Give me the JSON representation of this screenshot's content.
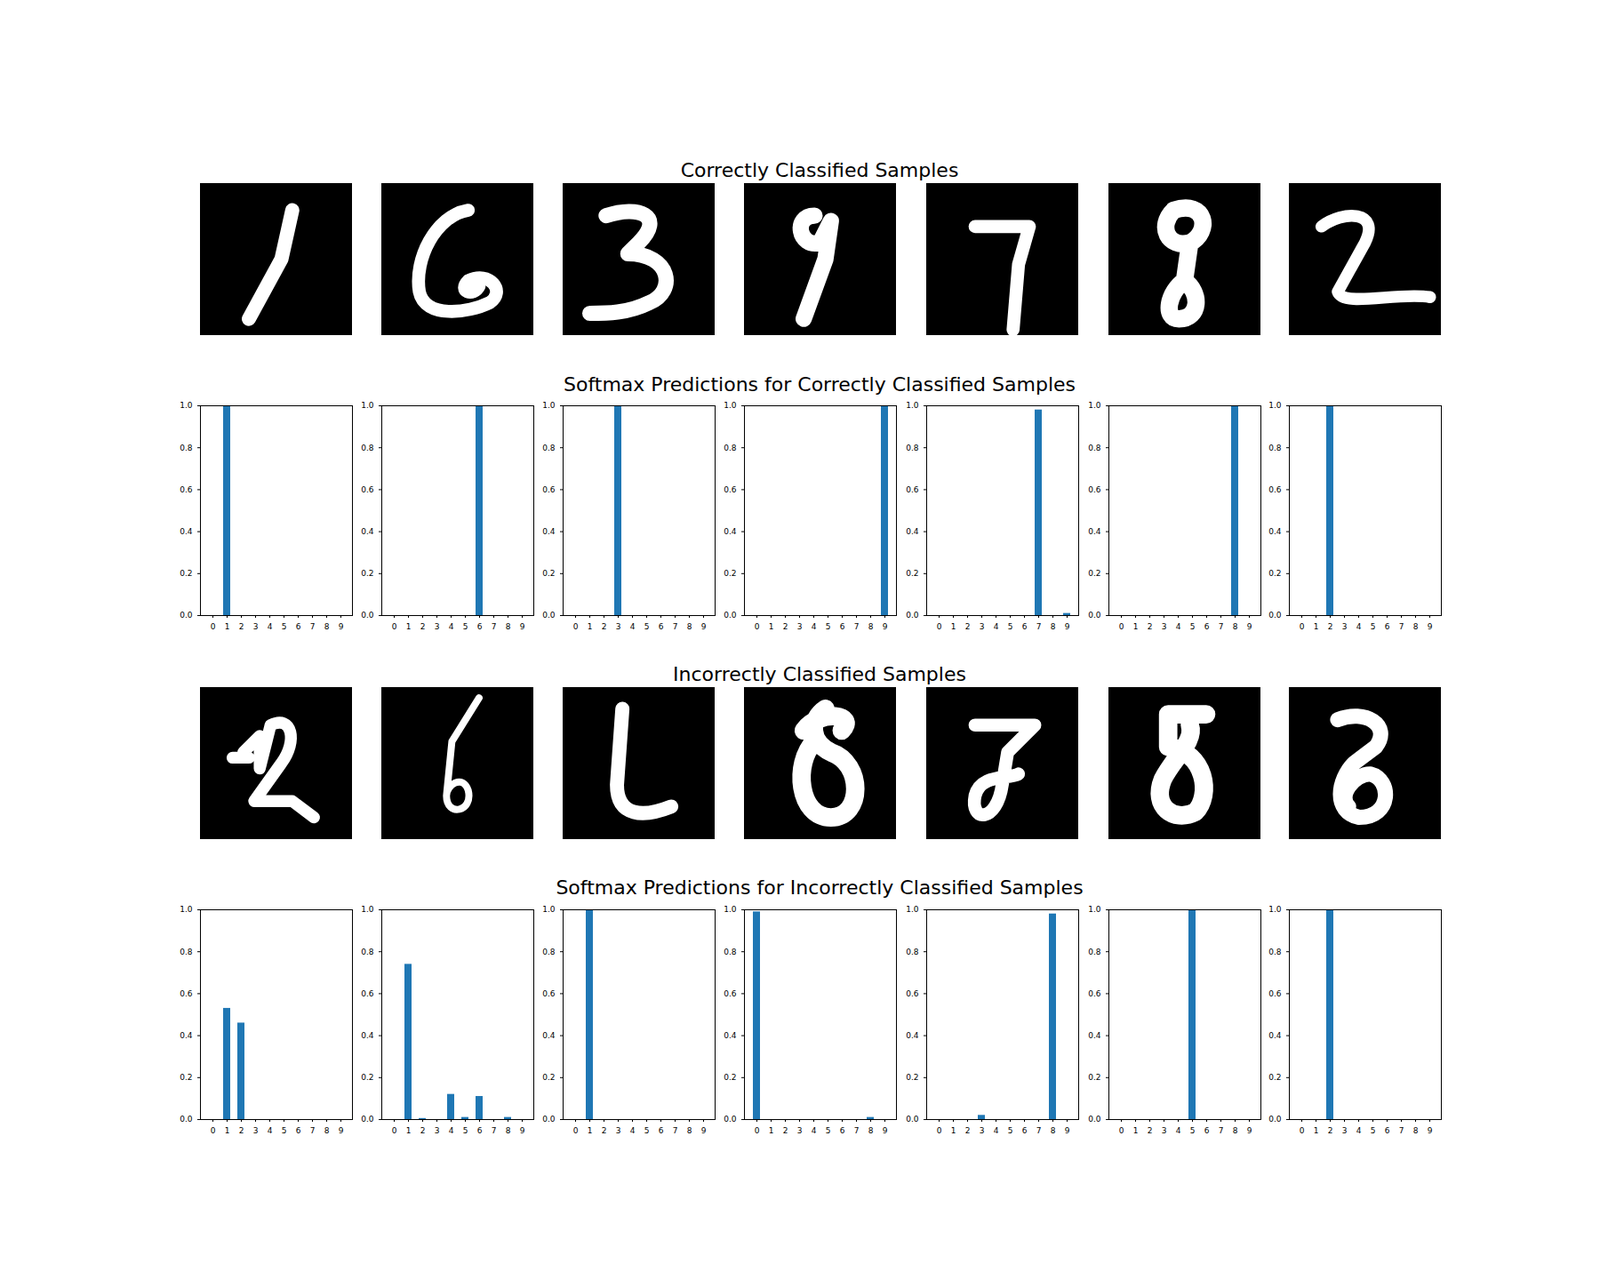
{
  "headings": {
    "correct_images": "Correctly Classified Samples",
    "correct_softmax": "Softmax Predictions for Correctly Classified Samples",
    "incorrect_images": "Incorrectly Classified Samples",
    "incorrect_softmax": "Softmax Predictions for Incorrectly Classified Samples"
  },
  "chart_data": [
    {
      "type": "bar",
      "categories": [
        "0",
        "1",
        "2",
        "3",
        "4",
        "5",
        "6",
        "7",
        "8",
        "9"
      ],
      "values": [
        0,
        1.0,
        0,
        0,
        0,
        0,
        0,
        0,
        0,
        0
      ],
      "color": "#1f77b4",
      "ylim": [
        0,
        1
      ],
      "yticks": [
        {
          "value": 0,
          "label": "0.0"
        },
        0.2,
        0.4,
        0.6,
        0.8,
        {
          "value": 1,
          "label": "1.0"
        }
      ]
    },
    {
      "type": "bar",
      "categories": [
        "0",
        "1",
        "2",
        "3",
        "4",
        "5",
        "6",
        "7",
        "8",
        "9"
      ],
      "values": [
        0,
        0,
        0,
        0,
        0,
        0,
        1.0,
        0,
        0,
        0
      ],
      "color": "#1f77b4",
      "ylim": [
        0,
        1
      ],
      "yticks": [
        {
          "value": 0,
          "label": "0.0"
        },
        0.2,
        0.4,
        0.6,
        0.8,
        {
          "value": 1,
          "label": "1.0"
        }
      ]
    },
    {
      "type": "bar",
      "categories": [
        "0",
        "1",
        "2",
        "3",
        "4",
        "5",
        "6",
        "7",
        "8",
        "9"
      ],
      "values": [
        0,
        0,
        0,
        1.0,
        0,
        0,
        0,
        0,
        0,
        0
      ],
      "color": "#1f77b4",
      "ylim": [
        0,
        1
      ],
      "yticks": [
        {
          "value": 0,
          "label": "0.0"
        },
        0.2,
        0.4,
        0.6,
        0.8,
        {
          "value": 1,
          "label": "1.0"
        }
      ]
    },
    {
      "type": "bar",
      "categories": [
        "0",
        "1",
        "2",
        "3",
        "4",
        "5",
        "6",
        "7",
        "8",
        "9"
      ],
      "values": [
        0,
        0,
        0,
        0,
        0,
        0,
        0,
        0,
        0,
        1.0
      ],
      "color": "#1f77b4",
      "ylim": [
        0,
        1
      ],
      "yticks": [
        {
          "value": 0,
          "label": "0.0"
        },
        0.2,
        0.4,
        0.6,
        0.8,
        {
          "value": 1,
          "label": "1.0"
        }
      ]
    },
    {
      "type": "bar",
      "categories": [
        "0",
        "1",
        "2",
        "3",
        "4",
        "5",
        "6",
        "7",
        "8",
        "9"
      ],
      "values": [
        0,
        0,
        0,
        0,
        0,
        0,
        0,
        0.98,
        0,
        0.01
      ],
      "color": "#1f77b4",
      "ylim": [
        0,
        1
      ],
      "yticks": [
        {
          "value": 0,
          "label": "0.0"
        },
        0.2,
        0.4,
        0.6,
        0.8,
        {
          "value": 1,
          "label": "1.0"
        }
      ]
    },
    {
      "type": "bar",
      "categories": [
        "0",
        "1",
        "2",
        "3",
        "4",
        "5",
        "6",
        "7",
        "8",
        "9"
      ],
      "values": [
        0,
        0,
        0,
        0,
        0,
        0,
        0,
        0,
        1.0,
        0
      ],
      "color": "#1f77b4",
      "ylim": [
        0,
        1
      ],
      "yticks": [
        {
          "value": 0,
          "label": "0.0"
        },
        0.2,
        0.4,
        0.6,
        0.8,
        {
          "value": 1,
          "label": "1.0"
        }
      ]
    },
    {
      "type": "bar",
      "categories": [
        "0",
        "1",
        "2",
        "3",
        "4",
        "5",
        "6",
        "7",
        "8",
        "9"
      ],
      "values": [
        0,
        0,
        1.0,
        0,
        0,
        0,
        0,
        0,
        0,
        0
      ],
      "color": "#1f77b4",
      "ylim": [
        0,
        1
      ],
      "yticks": [
        {
          "value": 0,
          "label": "0.0"
        },
        0.2,
        0.4,
        0.6,
        0.8,
        {
          "value": 1,
          "label": "1.0"
        }
      ]
    },
    {
      "type": "bar",
      "categories": [
        "0",
        "1",
        "2",
        "3",
        "4",
        "5",
        "6",
        "7",
        "8",
        "9"
      ],
      "values": [
        0,
        0.53,
        0.46,
        0,
        0,
        0,
        0,
        0,
        0,
        0
      ],
      "color": "#1f77b4",
      "ylim": [
        0,
        1
      ],
      "yticks": [
        {
          "value": 0,
          "label": "0.0"
        },
        0.2,
        0.4,
        0.6,
        0.8,
        {
          "value": 1,
          "label": "1.0"
        }
      ]
    },
    {
      "type": "bar",
      "categories": [
        "0",
        "1",
        "2",
        "3",
        "4",
        "5",
        "6",
        "7",
        "8",
        "9"
      ],
      "values": [
        0,
        0.74,
        0.005,
        0,
        0.12,
        0.01,
        0.11,
        0,
        0.01,
        0
      ],
      "color": "#1f77b4",
      "ylim": [
        0,
        1
      ],
      "yticks": [
        {
          "value": 0,
          "label": "0.0"
        },
        0.2,
        0.4,
        0.6,
        0.8,
        {
          "value": 1,
          "label": "1.0"
        }
      ]
    },
    {
      "type": "bar",
      "categories": [
        "0",
        "1",
        "2",
        "3",
        "4",
        "5",
        "6",
        "7",
        "8",
        "9"
      ],
      "values": [
        0,
        1.0,
        0,
        0,
        0,
        0,
        0,
        0,
        0,
        0
      ],
      "color": "#1f77b4",
      "ylim": [
        0,
        1
      ],
      "yticks": [
        {
          "value": 0,
          "label": "0.0"
        },
        0.2,
        0.4,
        0.6,
        0.8,
        {
          "value": 1,
          "label": "1.0"
        }
      ]
    },
    {
      "type": "bar",
      "categories": [
        "0",
        "1",
        "2",
        "3",
        "4",
        "5",
        "6",
        "7",
        "8",
        "9"
      ],
      "values": [
        0.99,
        0,
        0,
        0,
        0,
        0,
        0,
        0,
        0.01,
        0
      ],
      "color": "#1f77b4",
      "ylim": [
        0,
        1
      ],
      "yticks": [
        {
          "value": 0,
          "label": "0.0"
        },
        0.2,
        0.4,
        0.6,
        0.8,
        {
          "value": 1,
          "label": "1.0"
        }
      ]
    },
    {
      "type": "bar",
      "categories": [
        "0",
        "1",
        "2",
        "3",
        "4",
        "5",
        "6",
        "7",
        "8",
        "9"
      ],
      "values": [
        0,
        0,
        0,
        0.02,
        0,
        0,
        0,
        0,
        0.98,
        0
      ],
      "color": "#1f77b4",
      "ylim": [
        0,
        1
      ],
      "yticks": [
        {
          "value": 0,
          "label": "0.0"
        },
        0.2,
        0.4,
        0.6,
        0.8,
        {
          "value": 1,
          "label": "1.0"
        }
      ]
    },
    {
      "type": "bar",
      "categories": [
        "0",
        "1",
        "2",
        "3",
        "4",
        "5",
        "6",
        "7",
        "8",
        "9"
      ],
      "values": [
        0,
        0,
        0,
        0,
        0,
        1.0,
        0,
        0,
        0,
        0
      ],
      "color": "#1f77b4",
      "ylim": [
        0,
        1
      ],
      "yticks": [
        {
          "value": 0,
          "label": "0.0"
        },
        0.2,
        0.4,
        0.6,
        0.8,
        {
          "value": 1,
          "label": "1.0"
        }
      ]
    },
    {
      "type": "bar",
      "categories": [
        "0",
        "1",
        "2",
        "3",
        "4",
        "5",
        "6",
        "7",
        "8",
        "9"
      ],
      "values": [
        0,
        0,
        1.0,
        0,
        0,
        0,
        0,
        0,
        0,
        0
      ],
      "color": "#1f77b4",
      "ylim": [
        0,
        1
      ],
      "yticks": [
        {
          "value": 0,
          "label": "0.0"
        },
        0.2,
        0.4,
        0.6,
        0.8,
        {
          "value": 1,
          "label": "1.0"
        }
      ]
    }
  ]
}
